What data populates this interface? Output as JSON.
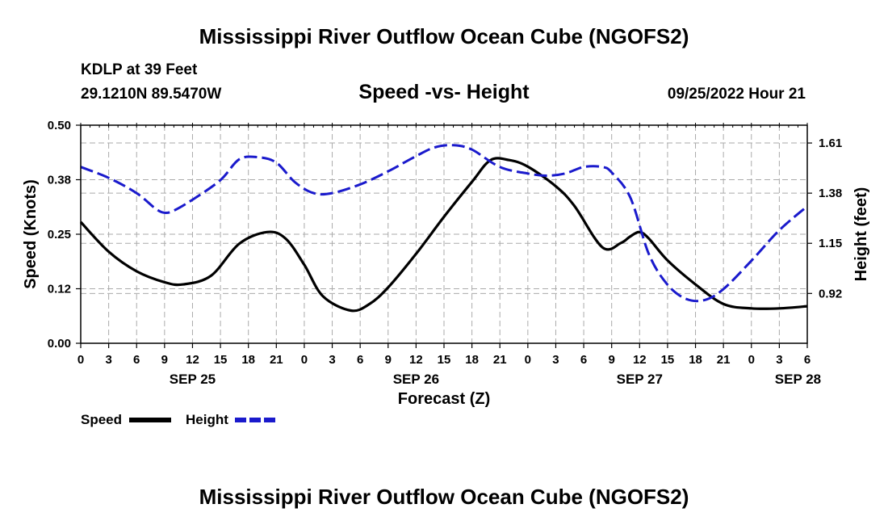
{
  "header": {
    "main_title": "Mississippi River Outflow Ocean Cube (NGOFS2)",
    "station": "KDLP at 39 Feet",
    "coords": "29.1210N  89.5470W",
    "chart_title": "Speed -vs- Height",
    "datetime": "09/25/2022 Hour 21"
  },
  "footer": {
    "repeat_title": "Mississippi River Outflow Ocean Cube (NGOFS2)"
  },
  "colors": {
    "speed": "#000000",
    "height": "#1a1acc",
    "grid": "#aaaaaa"
  },
  "chart_data": {
    "type": "line",
    "title": "Speed -vs- Height",
    "xlabel": "Forecast (Z)",
    "ylabel_left": "Speed (Knots)",
    "ylabel_right": "Height (feet)",
    "x_unit": "forecast hour from SEP 25 00Z",
    "xlim": [
      0,
      78
    ],
    "ylim_left": [
      0,
      0.5
    ],
    "ylim_right": [
      0.6915,
      1.6917
    ],
    "x_ticks": [
      0,
      3,
      6,
      9,
      12,
      15,
      18,
      21,
      24,
      27,
      30,
      33,
      36,
      39,
      42,
      45,
      48,
      51,
      54,
      57,
      60,
      63,
      66,
      69,
      72,
      75,
      78
    ],
    "x_tick_labels": [
      "0",
      "3",
      "6",
      "9",
      "12",
      "15",
      "18",
      "21",
      "0",
      "3",
      "6",
      "9",
      "12",
      "15",
      "18",
      "21",
      "0",
      "3",
      "6",
      "9",
      "12",
      "15",
      "18",
      "21",
      "0",
      "3",
      "6"
    ],
    "date_labels": [
      {
        "x": 12,
        "label": "SEP 25"
      },
      {
        "x": 36,
        "label": "SEP 26"
      },
      {
        "x": 60,
        "label": "SEP 27"
      },
      {
        "x": 77,
        "label": "SEP 28"
      }
    ],
    "y_left_ticks": [
      0.0,
      0.125,
      0.25,
      0.375,
      0.5
    ],
    "y_left_tick_labels": [
      "0.00",
      "0.12",
      "0.25",
      "0.38",
      "0.50"
    ],
    "y_right_ticks": [
      0.92,
      1.15,
      1.38,
      1.61
    ],
    "y_right_tick_labels": [
      "0.92",
      "1.15",
      "1.38",
      "1.61"
    ],
    "grid": true,
    "legend": [
      {
        "name": "Speed",
        "key": "speed"
      },
      {
        "name": "Height",
        "key": "height"
      }
    ],
    "series": [
      {
        "name": "Speed",
        "axis": "left",
        "style": "solid",
        "color": "#000000",
        "x": [
          0,
          3,
          6,
          9,
          11,
          14,
          17,
          20,
          22,
          24,
          26,
          29,
          31,
          33,
          36,
          39,
          42,
          44,
          46,
          48,
          51,
          53,
          56,
          58,
          59,
          60,
          61,
          63,
          66,
          69,
          72,
          75,
          78
        ],
        "y": [
          0.278,
          0.21,
          0.165,
          0.14,
          0.135,
          0.155,
          0.228,
          0.255,
          0.24,
          0.18,
          0.108,
          0.075,
          0.09,
          0.128,
          0.205,
          0.29,
          0.37,
          0.42,
          0.42,
          0.405,
          0.36,
          0.315,
          0.22,
          0.23,
          0.245,
          0.255,
          0.24,
          0.19,
          0.135,
          0.09,
          0.08,
          0.08,
          0.085
        ]
      },
      {
        "name": "Height",
        "axis": "right",
        "style": "dashed",
        "color": "#1a1acc",
        "x": [
          0,
          3,
          6,
          8,
          9,
          10,
          12,
          15,
          17,
          19,
          21,
          23,
          25,
          27,
          30,
          33,
          36,
          38,
          40,
          42,
          45,
          48,
          50,
          52,
          54,
          56,
          57,
          59,
          61,
          63,
          65,
          67,
          69,
          72,
          75,
          78
        ],
        "y": [
          1.5,
          1.45,
          1.38,
          1.31,
          1.29,
          1.3,
          1.35,
          1.44,
          1.535,
          1.545,
          1.52,
          1.43,
          1.38,
          1.38,
          1.42,
          1.48,
          1.55,
          1.59,
          1.6,
          1.58,
          1.5,
          1.47,
          1.46,
          1.47,
          1.5,
          1.5,
          1.475,
          1.36,
          1.1,
          0.96,
          0.895,
          0.89,
          0.94,
          1.07,
          1.21,
          1.32
        ]
      }
    ]
  }
}
